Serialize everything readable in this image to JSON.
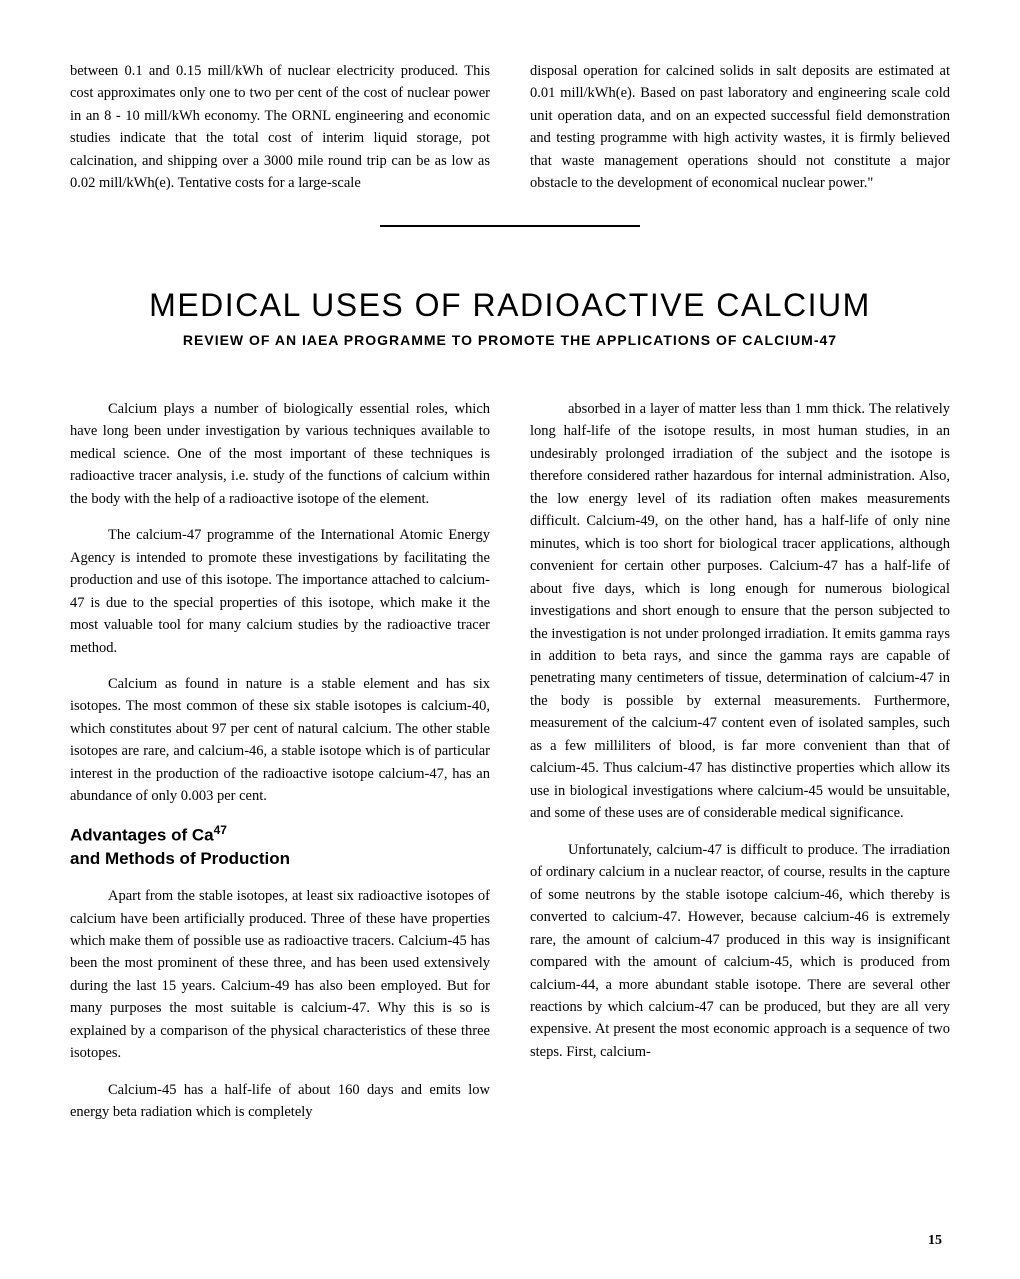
{
  "top": {
    "left": "between 0.1 and 0.15 mill/kWh of nuclear electricity produced.   This cost approximates only one to two per cent of the cost of nuclear power in an 8 - 10 mill/kWh economy.     The ORNL engineering and economic studies indicate that the total cost of interim liquid storage, pot calcination, and shipping over a 3000 mile round trip can be as low as 0.02 mill/kWh(e).   Tentative costs for a large-scale",
    "right": "disposal operation for calcined solids in salt deposits are estimated at 0.01 mill/kWh(e).   Based on past laboratory and engineering scale cold unit operation data, and on an expected successful field demonstration and testing programme with high activity wastes, it is firmly believed that waste management operations should not constitute a major obstacle to the development of economical nuclear power.\""
  },
  "title": "MEDICAL USES OF RADIOACTIVE CALCIUM",
  "subtitle": "REVIEW OF AN IAEA PROGRAMME TO PROMOTE THE APPLICATIONS OF CALCIUM-47",
  "left_col": {
    "p1": "Calcium plays a number of biologically essential roles, which have long been under investigation by various techniques available to medical science. One of the most important of these techniques is radioactive tracer analysis, i.e. study of the functions of calcium within the body with the help of a radioactive isotope of the element.",
    "p2": "The calcium-47 programme of the International Atomic Energy Agency is intended to promote these investigations by facilitating the production and use of this isotope.   The importance attached to calcium-47 is due to the special properties of this isotope, which make it the most valuable tool for many calcium studies by the radioactive tracer method.",
    "p3": "Calcium as found in nature is a stable element and has six isotopes.    The most common of these six stable isotopes is calcium-40, which constitutes about 97 per cent of natural calcium.    The other stable isotopes are rare, and calcium-46, a stable isotope which is of particular interest in the production of the radioactive isotope calcium-47, has  an abundance of only 0.003 per cent.",
    "heading_pre": "Advantages of Ca",
    "heading_sup": "47",
    "heading_post": " and Methods of Production",
    "p4": "Apart from the stable isotopes, at least six radioactive isotopes of calcium have been artificially produced.    Three of these have properties which make them of possible use as radioactive tracers. Calcium-45 has been the most prominent of these three, and has been used extensively during the last 15 years.   Calcium-49 has also been employed. But for many purposes the most suitable is calcium-47. Why this is so is explained by a comparison of the physical characteristics of these three isotopes.",
    "p5": "Calcium-45 has a half-life of about 160 days and emits low energy beta radiation which is completely"
  },
  "right_col": {
    "p1": "absorbed in a layer of matter less than 1 mm thick. The relatively long half-life of the isotope results, in most human studies, in an undesirably prolonged irradiation of the subject and the isotope is therefore considered rather hazardous for internal administration. Also, the low energy level of its radiation often makes measurements difficult.   Calcium-49, on the other hand, has a half-life of only nine minutes, which is too short for biological tracer applications, although convenient for certain other purposes.    Calcium-47 has a half-life of about five days, which is long enough for numerous biological investigations and short enough to ensure that the person subjected to the investigation is not under prolonged irradiation.   It emits gamma rays in addition to beta rays, and since the gamma rays are capable of penetrating many centimeters of tissue, determination of calcium-47 in the body is possible by external measurements. Furthermore, measurement of the calcium-47 content even of isolated samples, such as a few milliliters of blood, is far more convenient than that of calcium-45.    Thus calcium-47 has distinctive properties which allow its use in biological investigations where calcium-45 would be unsuitable, and some of these uses are of considerable medical significance.",
    "p2": "Unfortunately, calcium-47 is difficult to produce.    The irradiation of ordinary calcium in a nuclear reactor, of course, results in the capture of some neutrons by the stable isotope calcium-46, which thereby is converted to calcium-47. However, because calcium-46 is extremely rare, the amount of calcium-47 produced in this way is insignificant compared with the amount of calcium-45, which is produced from calcium-44, a more abundant stable isotope.    There are several other reactions by which calcium-47 can be produced, but they are all very expensive.    At present the most economic approach is a sequence of two steps. First, calcium-"
  },
  "page_number": "15"
}
